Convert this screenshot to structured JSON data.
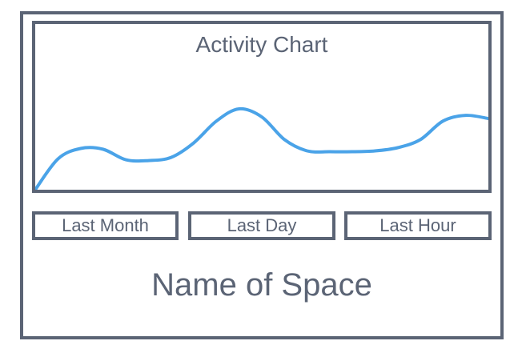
{
  "chart": {
    "title": "Activity Chart"
  },
  "chart_data": {
    "type": "line",
    "title": "Activity Chart",
    "xlabel": "",
    "ylabel": "",
    "grid": false,
    "x": [
      0,
      1,
      2,
      3,
      4,
      5,
      6,
      7,
      8,
      9,
      10,
      11,
      12,
      13,
      14,
      15,
      16,
      17,
      18,
      19,
      20
    ],
    "series": [
      {
        "color": "#4aa3e8",
        "values": [
          0,
          38,
          51,
          50,
          37,
          36,
          40,
          58,
          85,
          100,
          90,
          62,
          48,
          47,
          47,
          48,
          52,
          62,
          85,
          92,
          88
        ]
      }
    ]
  },
  "buttons": {
    "last_month": "Last Month",
    "last_day": "Last Day",
    "last_hour": "Last Hour"
  },
  "space": {
    "name": "Name of Space"
  },
  "colors": {
    "outline": "#5b6475",
    "line": "#4aa3e8"
  }
}
